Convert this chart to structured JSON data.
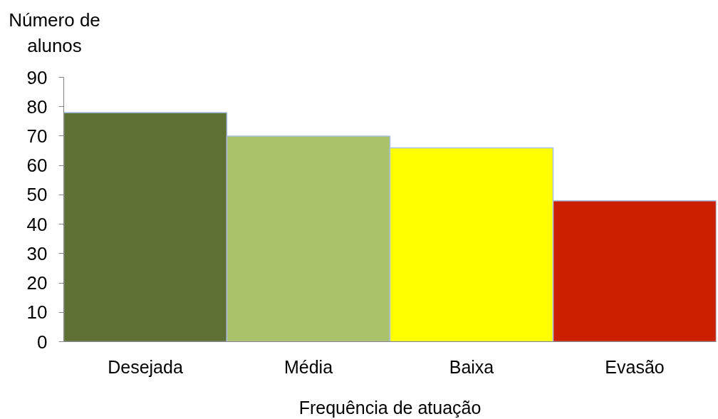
{
  "chart_data": {
    "type": "bar",
    "ylabel": "Número de alunos",
    "xlabel": "Frequência de atuação",
    "categories": [
      "Desejada",
      "Média",
      "Baixa",
      "Evasão"
    ],
    "values": [
      78,
      70,
      66,
      48
    ],
    "colors": [
      "#5e7034",
      "#aac26a",
      "#ffff00",
      "#cc1f00"
    ],
    "ylim": [
      0,
      90
    ],
    "yticks": [
      0,
      10,
      20,
      30,
      40,
      50,
      60,
      70,
      80,
      90
    ]
  }
}
